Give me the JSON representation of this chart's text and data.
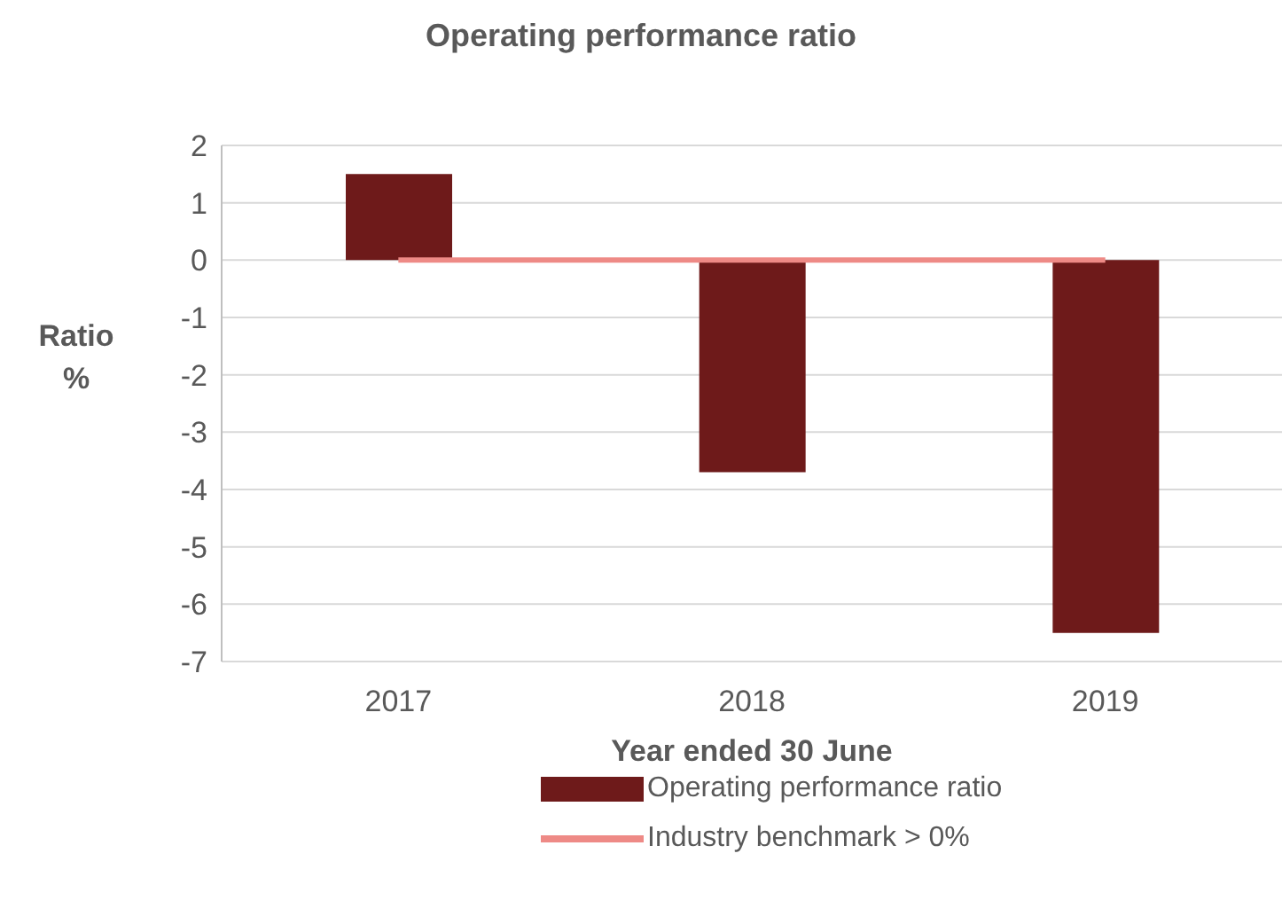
{
  "chart_data": {
    "type": "bar",
    "title": "Operating performance ratio",
    "xlabel": "Year ended 30 June",
    "ylabel": "Ratio %",
    "categories": [
      "2017",
      "2018",
      "2019"
    ],
    "series": [
      {
        "name": "Operating performance ratio",
        "color": "#6e1a1a",
        "values": [
          1.5,
          -3.7,
          -6.5
        ]
      },
      {
        "name": "Industry benchmark > 0%",
        "type": "line",
        "color": "#ee8a86",
        "values": [
          0,
          0,
          0
        ]
      }
    ],
    "ylim": [
      -7,
      2
    ],
    "yticks": [
      -7,
      -6,
      -5,
      -4,
      -3,
      -2,
      -1,
      0,
      1,
      2
    ],
    "grid": "y",
    "legend": "bottom",
    "line_style": "solid",
    "marker": "none"
  }
}
